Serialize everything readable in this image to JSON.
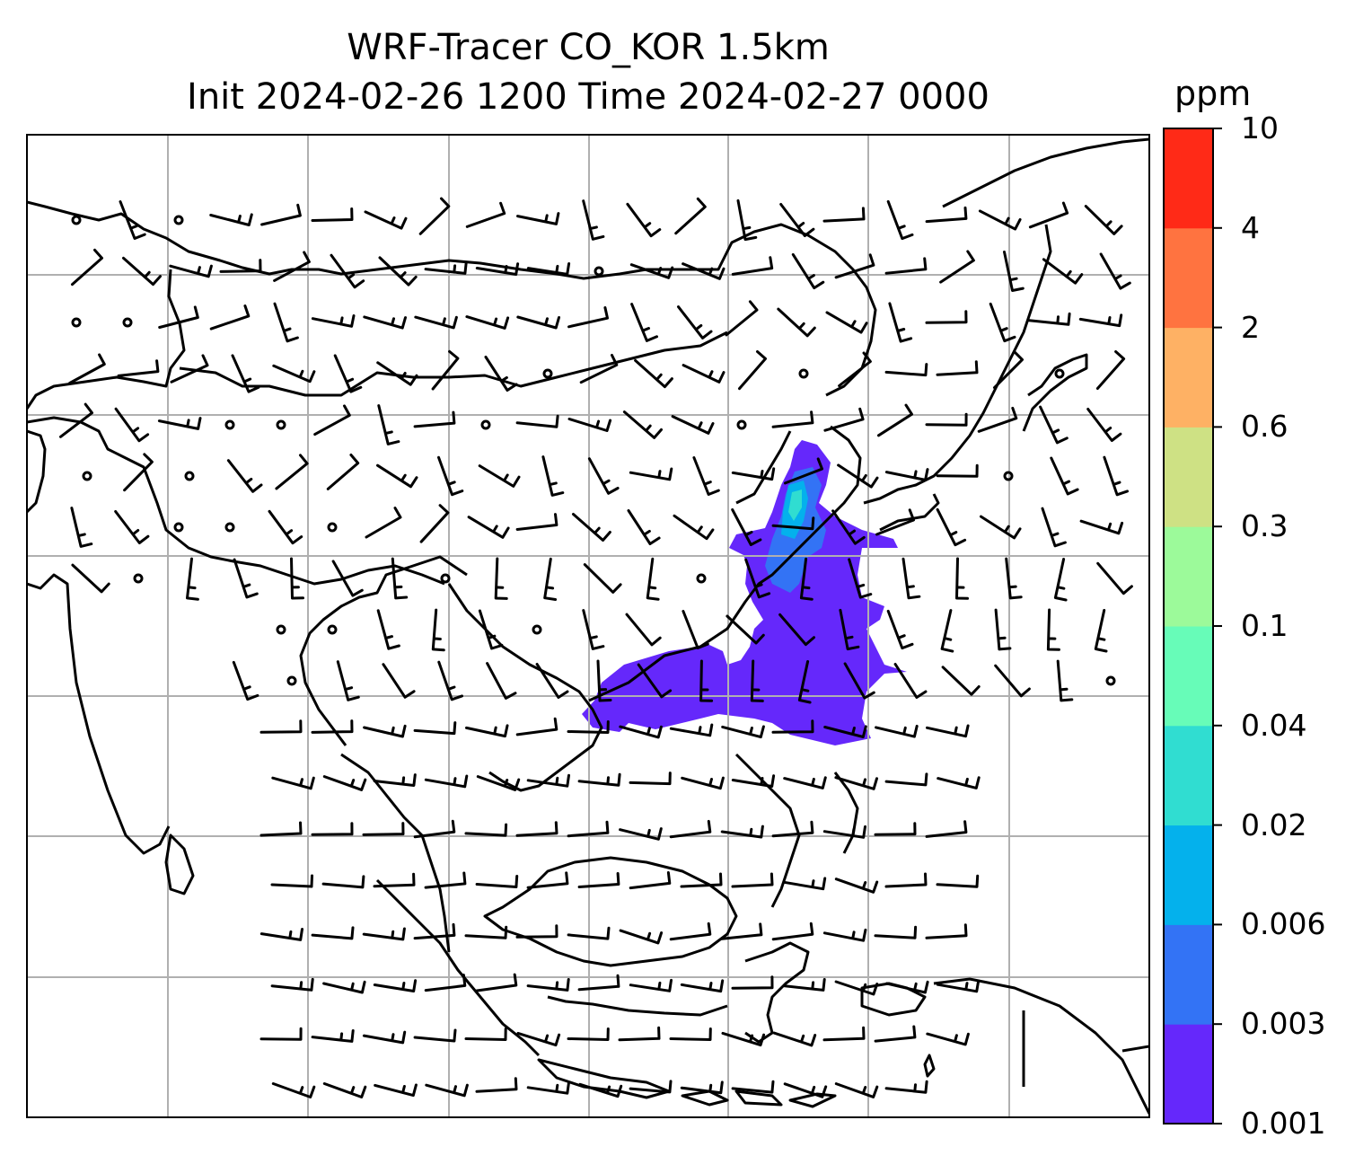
{
  "title_line1": "WRF-Tracer CO_KOR 1.5km",
  "title_line2": "Init 2024-02-26 1200 Time 2024-02-27 0000",
  "colorbar": {
    "unit": "ppm",
    "levels": [
      "0.001",
      "0.003",
      "0.006",
      "0.02",
      "0.04",
      "0.1",
      "0.3",
      "0.6",
      "2",
      "4",
      "10"
    ],
    "colors": [
      "#6528fb",
      "#3373f5",
      "#04b1ec",
      "#30ddd1",
      "#67fcb8",
      "#9cfa9a",
      "#cee184",
      "#feb164",
      "#ff7340",
      "#ff2a17"
    ]
  },
  "map": {
    "gridline_color": "#b0b0b0",
    "coastline_color": "#000000",
    "plume_colors": [
      "#6528fb",
      "#3373f5",
      "#04b1ec",
      "#30ddd1"
    ],
    "wind_symbol": "wind-barb"
  }
}
